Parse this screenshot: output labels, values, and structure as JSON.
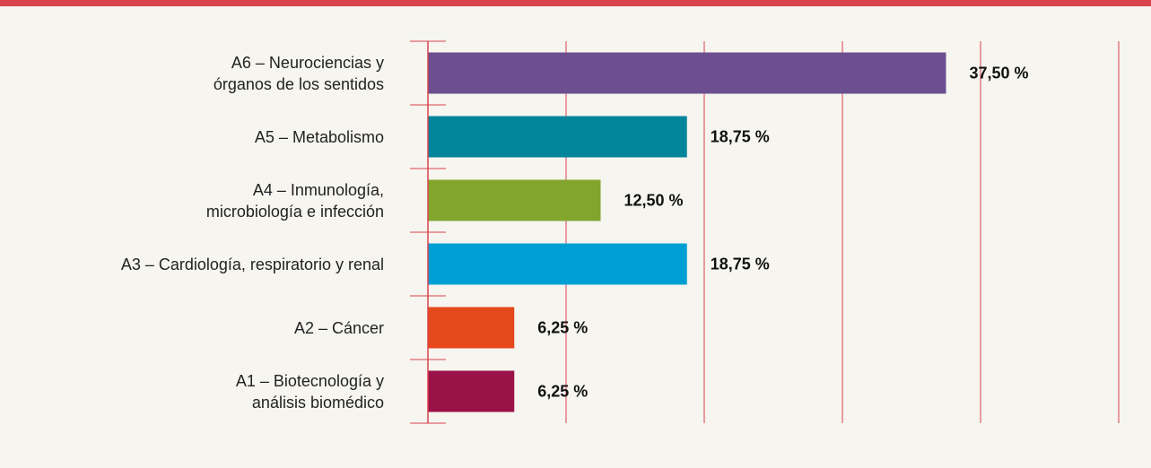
{
  "chart_data": {
    "type": "bar",
    "orientation": "horizontal",
    "categories": [
      "A6 – Neurociencias y\nórganos de los sentidos",
      "A5 – Metabolismo",
      "A4 – Inmunología,\nmicrobiología e infección",
      "A3 – Cardiología, respiratorio y renal",
      "A2 – Cáncer",
      "A1 – Biotecnología y\nanálisis biomédico"
    ],
    "values": [
      37.5,
      18.75,
      12.5,
      18.75,
      6.25,
      6.25
    ],
    "value_labels": [
      "37,50 %",
      "18,75 %",
      "12,50 %",
      "18,75 %",
      "6,25 %",
      "6,25 %"
    ],
    "colors": [
      "#6b4f8f",
      "#00859b",
      "#82a62d",
      "#009fd3",
      "#e5481b",
      "#9a1247"
    ],
    "xlim": [
      0,
      50
    ],
    "xticks": [
      0,
      10,
      20,
      30,
      40,
      50
    ],
    "grid": true
  }
}
